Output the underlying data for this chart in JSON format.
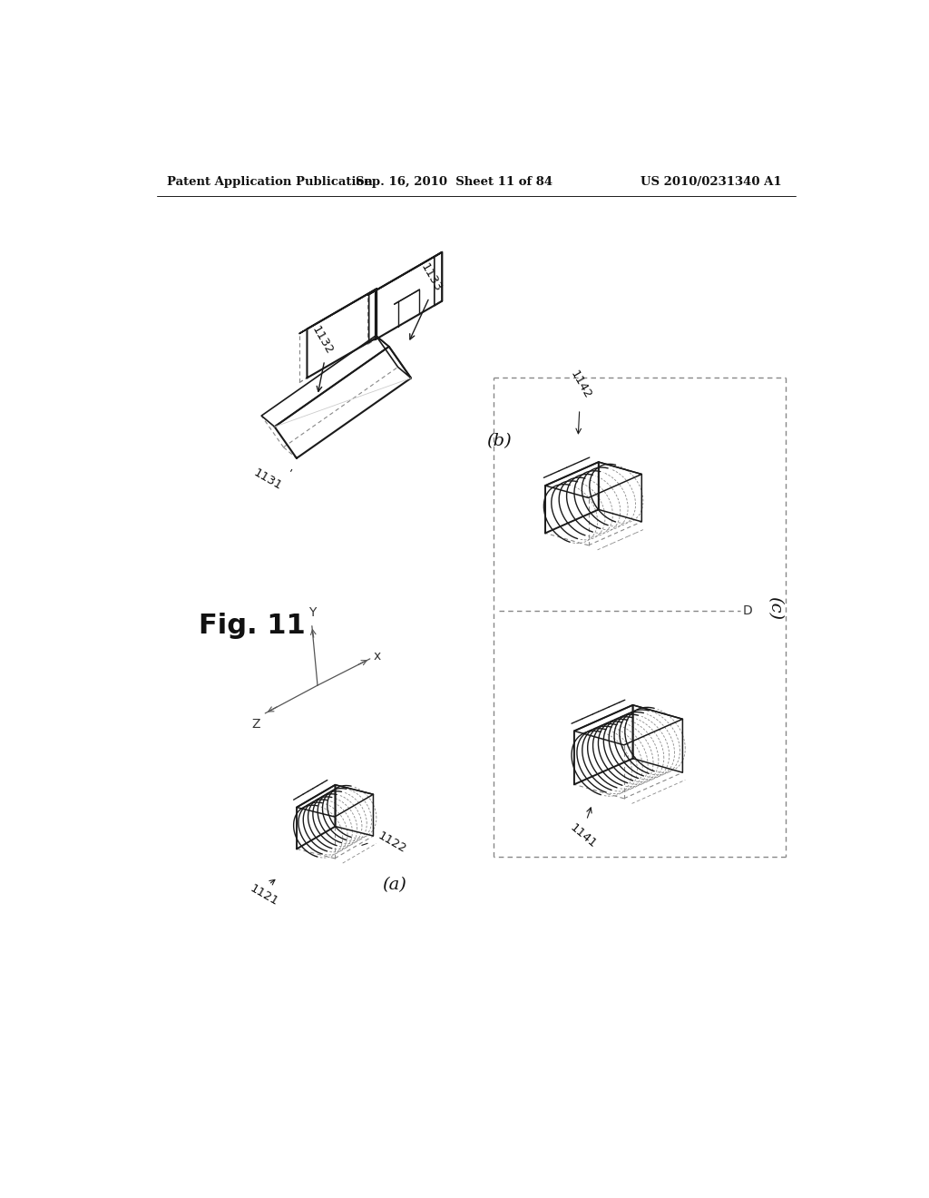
{
  "background_color": "#ffffff",
  "header_left": "Patent Application Publication",
  "header_mid": "Sep. 16, 2010  Sheet 11 of 84",
  "header_right": "US 2010/0231340 A1",
  "fig_label": "Fig. 11",
  "line_color": "#1a1a1a",
  "dashed_color": "#888888"
}
